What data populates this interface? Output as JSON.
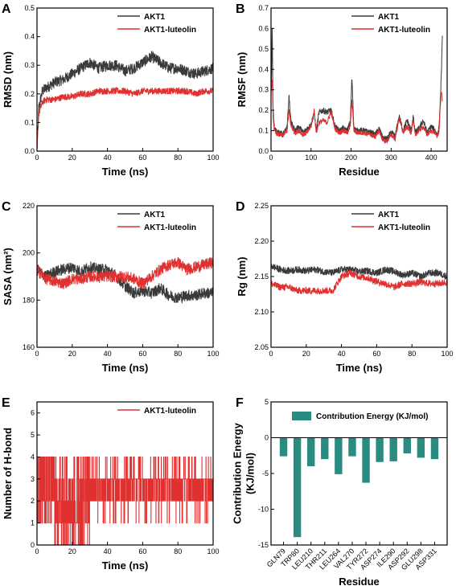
{
  "chart_data": [
    {
      "panel": "A",
      "type": "line",
      "xlabel": "Time (ns)",
      "ylabel": "RMSD (nm)",
      "xlim": [
        0,
        100
      ],
      "ylim": [
        0,
        0.5
      ],
      "xticks": [
        "0",
        "20",
        "40",
        "60",
        "80",
        "100"
      ],
      "yticks": [
        "0.0",
        "0.1",
        "0.2",
        "0.3",
        "0.4",
        "0.5"
      ],
      "legend_position": "top-right",
      "series": [
        {
          "name": "AKT1",
          "color": "#3a3a3a",
          "x": [
            0,
            1,
            3,
            5,
            10,
            15,
            20,
            25,
            30,
            35,
            40,
            45,
            50,
            55,
            60,
            65,
            70,
            75,
            80,
            85,
            90,
            95,
            100
          ],
          "y": [
            0,
            0.15,
            0.21,
            0.22,
            0.24,
            0.25,
            0.27,
            0.29,
            0.31,
            0.29,
            0.3,
            0.3,
            0.28,
            0.29,
            0.31,
            0.33,
            0.31,
            0.29,
            0.29,
            0.28,
            0.27,
            0.28,
            0.29
          ],
          "noise": 0.02
        },
        {
          "name": "AKT1-luteolin",
          "color": "#e03030",
          "x": [
            0,
            1,
            3,
            5,
            10,
            15,
            20,
            25,
            30,
            35,
            40,
            45,
            50,
            55,
            60,
            65,
            70,
            75,
            80,
            85,
            90,
            95,
            100
          ],
          "y": [
            0,
            0.13,
            0.17,
            0.18,
            0.18,
            0.19,
            0.19,
            0.2,
            0.2,
            0.21,
            0.21,
            0.21,
            0.21,
            0.2,
            0.21,
            0.21,
            0.21,
            0.21,
            0.21,
            0.21,
            0.2,
            0.21,
            0.21
          ],
          "noise": 0.012
        }
      ]
    },
    {
      "panel": "B",
      "type": "line",
      "xlabel": "Residue",
      "ylabel": "RMSF (nm)",
      "xlim": [
        0,
        440
      ],
      "ylim": [
        0,
        0.7
      ],
      "xticks": [
        "0",
        "100",
        "200",
        "300",
        "400"
      ],
      "yticks": [
        "0.0",
        "0.1",
        "0.2",
        "0.3",
        "0.4",
        "0.5",
        "0.6",
        "0.7"
      ],
      "legend_position": "top-right",
      "series": [
        {
          "name": "AKT1",
          "color": "#3a3a3a",
          "x": [
            1,
            3,
            5,
            8,
            12,
            20,
            30,
            40,
            45,
            50,
            60,
            70,
            80,
            90,
            100,
            108,
            113,
            120,
            130,
            140,
            150,
            160,
            170,
            180,
            190,
            198,
            202,
            207,
            215,
            230,
            250,
            260,
            270,
            280,
            290,
            300,
            310,
            320,
            330,
            340,
            350,
            355,
            360,
            370,
            380,
            390,
            400,
            410,
            415,
            420,
            425,
            428
          ],
          "y": [
            0.35,
            0.62,
            0.2,
            0.12,
            0.1,
            0.09,
            0.08,
            0.12,
            0.27,
            0.14,
            0.1,
            0.12,
            0.09,
            0.11,
            0.13,
            0.19,
            0.1,
            0.19,
            0.2,
            0.19,
            0.2,
            0.12,
            0.1,
            0.11,
            0.1,
            0.14,
            0.36,
            0.11,
            0.1,
            0.1,
            0.09,
            0.08,
            0.11,
            0.06,
            0.06,
            0.09,
            0.07,
            0.17,
            0.1,
            0.15,
            0.1,
            0.17,
            0.09,
            0.11,
            0.15,
            0.09,
            0.12,
            0.1,
            0.08,
            0.12,
            0.35,
            0.55
          ],
          "noise": 0.015
        },
        {
          "name": "AKT1-luteolin",
          "color": "#e03030",
          "x": [
            1,
            3,
            5,
            8,
            12,
            20,
            30,
            40,
            45,
            50,
            60,
            70,
            80,
            90,
            100,
            108,
            113,
            120,
            130,
            140,
            150,
            160,
            170,
            180,
            190,
            198,
            202,
            207,
            215,
            230,
            250,
            260,
            270,
            280,
            290,
            300,
            310,
            320,
            330,
            340,
            350,
            355,
            360,
            370,
            380,
            390,
            400,
            410,
            415,
            420,
            425,
            428
          ],
          "y": [
            0.3,
            0.35,
            0.18,
            0.1,
            0.09,
            0.08,
            0.08,
            0.1,
            0.2,
            0.12,
            0.09,
            0.1,
            0.08,
            0.09,
            0.12,
            0.2,
            0.09,
            0.14,
            0.15,
            0.14,
            0.19,
            0.11,
            0.09,
            0.1,
            0.09,
            0.12,
            0.25,
            0.1,
            0.09,
            0.09,
            0.08,
            0.07,
            0.1,
            0.05,
            0.05,
            0.08,
            0.06,
            0.16,
            0.09,
            0.12,
            0.09,
            0.15,
            0.08,
            0.1,
            0.12,
            0.08,
            0.1,
            0.09,
            0.07,
            0.1,
            0.3,
            0.25
          ],
          "noise": 0.012
        }
      ]
    },
    {
      "panel": "C",
      "type": "line",
      "xlabel": "Time (ns)",
      "ylabel": "SASA (nm²)",
      "xlim": [
        0,
        100
      ],
      "ylim": [
        160,
        220
      ],
      "xticks": [
        "0",
        "20",
        "40",
        "60",
        "80",
        "100"
      ],
      "yticks": [
        "160",
        "180",
        "200",
        "220"
      ],
      "legend_position": "top-right",
      "series": [
        {
          "name": "AKT1",
          "color": "#3a3a3a",
          "x": [
            0,
            5,
            10,
            15,
            20,
            25,
            30,
            35,
            40,
            45,
            50,
            55,
            60,
            65,
            70,
            75,
            80,
            85,
            90,
            95,
            100
          ],
          "y": [
            193,
            190,
            192,
            193,
            194,
            192,
            194,
            193,
            193,
            190,
            186,
            183,
            184,
            183,
            185,
            182,
            181,
            182,
            182,
            183,
            183
          ],
          "noise": 2.5
        },
        {
          "name": "AKT1-luteolin",
          "color": "#e03030",
          "x": [
            0,
            5,
            10,
            15,
            20,
            25,
            30,
            35,
            40,
            45,
            50,
            55,
            60,
            65,
            70,
            75,
            80,
            85,
            90,
            95,
            100
          ],
          "y": [
            193,
            189,
            188,
            187,
            189,
            189,
            190,
            190,
            190,
            190,
            190,
            189,
            187,
            190,
            193,
            195,
            196,
            193,
            194,
            195,
            196
          ],
          "noise": 2.5
        }
      ]
    },
    {
      "panel": "D",
      "type": "line",
      "xlabel": "Time (ns)",
      "ylabel": "Rg (nm)",
      "xlim": [
        0,
        100
      ],
      "ylim": [
        2.05,
        2.25
      ],
      "xticks": [
        "0",
        "20",
        "40",
        "60",
        "80",
        "100"
      ],
      "yticks": [
        "2.05",
        "2.10",
        "2.15",
        "2.20",
        "2.25"
      ],
      "legend_position": "top-right",
      "series": [
        {
          "name": "AKT1",
          "color": "#3a3a3a",
          "x": [
            0,
            5,
            10,
            15,
            20,
            25,
            30,
            35,
            40,
            45,
            50,
            55,
            60,
            65,
            70,
            75,
            80,
            85,
            90,
            95,
            100
          ],
          "y": [
            2.165,
            2.16,
            2.158,
            2.16,
            2.158,
            2.16,
            2.157,
            2.155,
            2.16,
            2.16,
            2.157,
            2.158,
            2.155,
            2.16,
            2.157,
            2.152,
            2.155,
            2.15,
            2.155,
            2.155,
            2.15
          ],
          "noise": 0.005
        },
        {
          "name": "AKT1-luteolin",
          "color": "#e03030",
          "x": [
            0,
            5,
            10,
            15,
            20,
            25,
            30,
            35,
            40,
            45,
            50,
            55,
            60,
            65,
            70,
            75,
            80,
            85,
            90,
            95,
            100
          ],
          "y": [
            2.14,
            2.135,
            2.135,
            2.13,
            2.13,
            2.13,
            2.13,
            2.13,
            2.15,
            2.155,
            2.15,
            2.148,
            2.143,
            2.14,
            2.135,
            2.14,
            2.14,
            2.142,
            2.14,
            2.14,
            2.142
          ],
          "noise": 0.005
        }
      ]
    },
    {
      "panel": "E",
      "type": "line",
      "xlabel": "Time (ns)",
      "ylabel": "Number of H-bond",
      "xlim": [
        0,
        100
      ],
      "ylim": [
        0,
        6.5
      ],
      "xticks": [
        "0",
        "20",
        "40",
        "60",
        "80",
        "100"
      ],
      "yticks": [
        "0",
        "1",
        "2",
        "3",
        "4",
        "5",
        "6"
      ],
      "legend_position": "top-right",
      "series": [
        {
          "name": "AKT1-luteolin",
          "color": "#e03030",
          "step": true,
          "x_start": 0,
          "x_end": 100,
          "samples": 1000
        }
      ]
    },
    {
      "panel": "F",
      "type": "bar",
      "xlabel": "Residue",
      "ylabel": "Contribution Energy (KJ/mol)",
      "ylim": [
        -15,
        5
      ],
      "yticks": [
        "-15",
        "-10",
        "-5",
        "0",
        "5"
      ],
      "legend_position": "top-right",
      "bar_color": "#2a8c80",
      "series_name": "Contribution Energy (KJ/mol)",
      "categories": [
        "GLN79",
        "TRP80",
        "LEU210",
        "THR211",
        "LEU264",
        "VAL270",
        "TYR272",
        "ASP274",
        "ILE290",
        "ASP292",
        "GLU298",
        "ASP331"
      ],
      "values": [
        -2.6,
        -13.9,
        -4.0,
        -3.0,
        -5.1,
        -2.6,
        -6.3,
        -3.4,
        -3.3,
        -2.2,
        -2.8,
        -3.0
      ]
    }
  ]
}
